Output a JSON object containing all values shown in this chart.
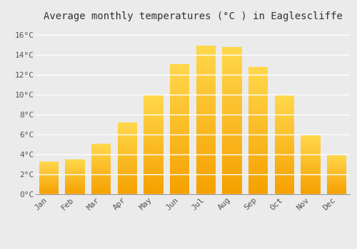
{
  "title": "Average monthly temperatures (°C ) in Eaglescliffe",
  "months": [
    "Jan",
    "Feb",
    "Mar",
    "Apr",
    "May",
    "Jun",
    "Jul",
    "Aug",
    "Sep",
    "Oct",
    "Nov",
    "Dec"
  ],
  "values": [
    3.3,
    3.5,
    5.1,
    7.2,
    10.0,
    13.1,
    14.9,
    14.8,
    12.8,
    10.0,
    6.0,
    4.0
  ],
  "bar_color_bottom": "#F5A000",
  "bar_color_top": "#FFD84D",
  "ylim": [
    0,
    17
  ],
  "yticks": [
    0,
    2,
    4,
    6,
    8,
    10,
    12,
    14,
    16
  ],
  "ytick_labels": [
    "0°C",
    "2°C",
    "4°C",
    "6°C",
    "8°C",
    "10°C",
    "12°C",
    "14°C",
    "16°C"
  ],
  "background_color": "#EBEBEB",
  "grid_color": "#FFFFFF",
  "title_fontsize": 10,
  "tick_fontsize": 8,
  "bar_width": 0.75,
  "font_family": "monospace",
  "n_gradient_steps": 60
}
